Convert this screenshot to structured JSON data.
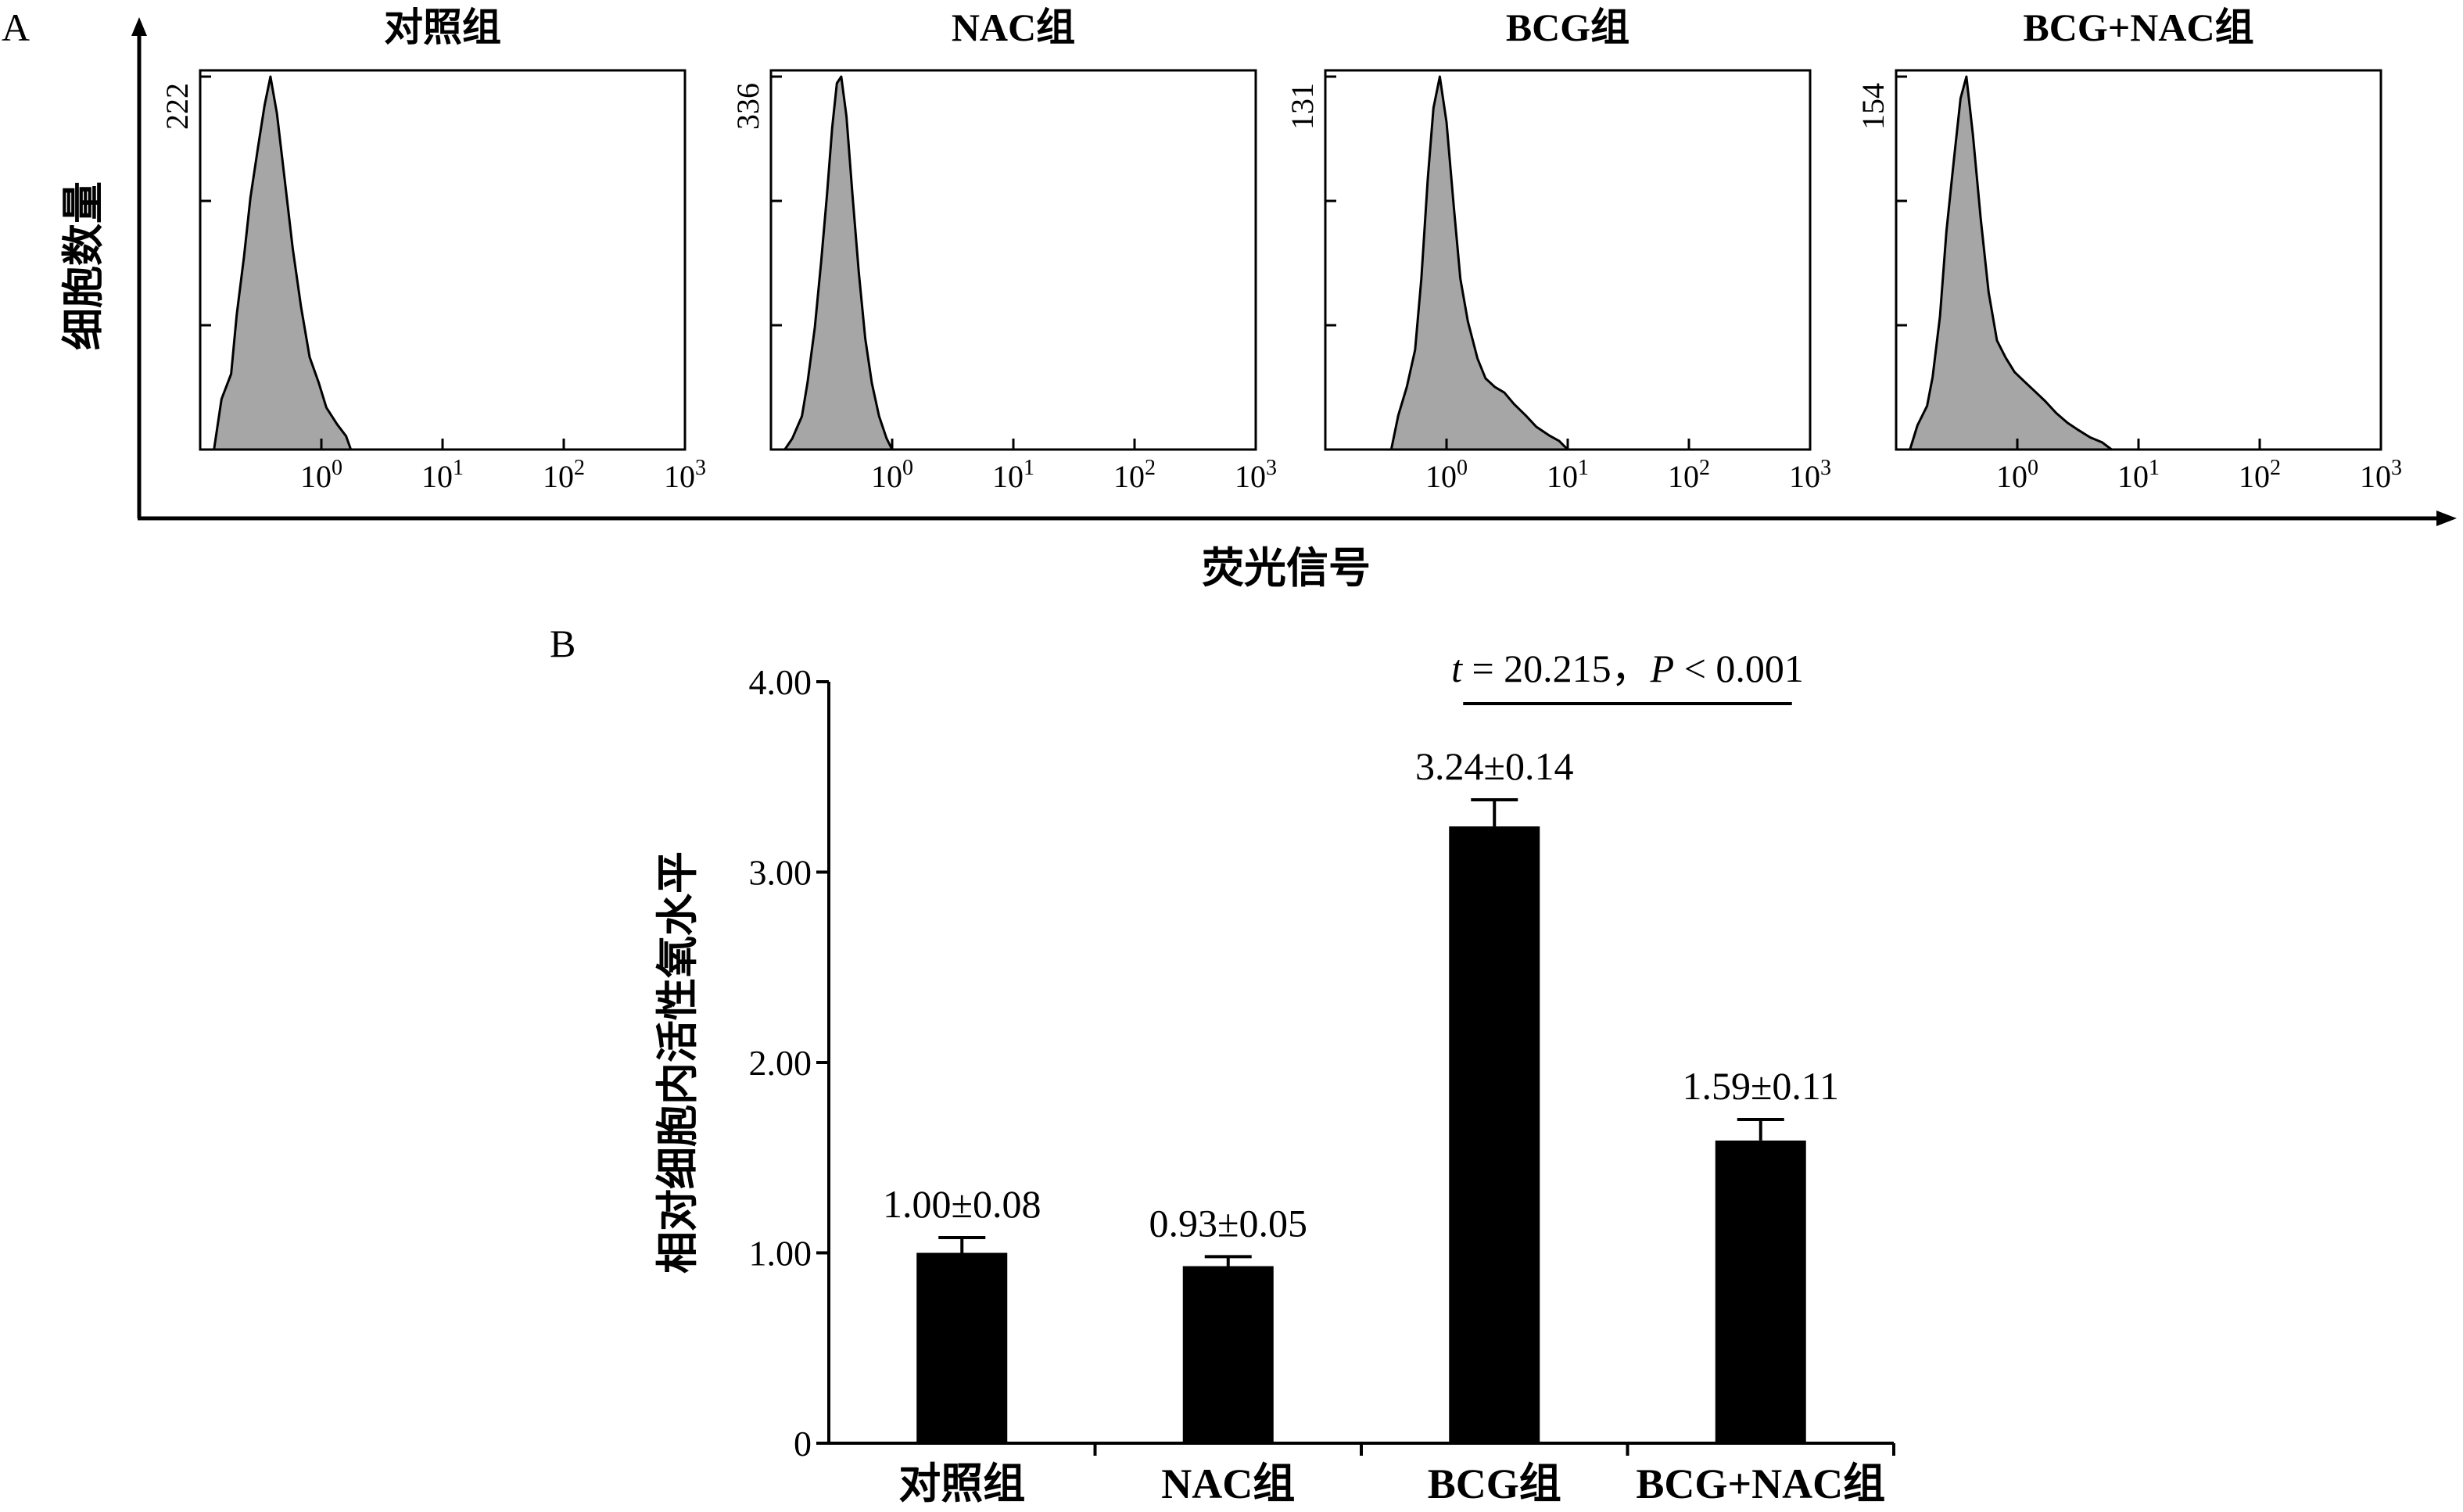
{
  "panel_labels": {
    "a": "A",
    "b": "B"
  },
  "panel_a": {
    "ylabel": "细胞数量",
    "xlabel": "荧光信号",
    "x_tick_base": "10",
    "x_tick_exponents": [
      "0",
      "1",
      "2",
      "3"
    ]
  },
  "panel_b": {
    "annotation": {
      "t_symbol": "t",
      "t_rest": " = 20.215，",
      "p_symbol": "P",
      "p_rest": " < 0.001"
    }
  },
  "colors": {
    "histogram_fill": "#a6a6a6",
    "bar_fill": "#000000",
    "axis": "#000000"
  },
  "chart_data": [
    {
      "type": "area",
      "panel": "A",
      "subtype": "flow-cytometry-histogram",
      "x_scale": "log",
      "xlim": [
        0.1,
        1000
      ],
      "histograms": [
        {
          "title": "对照组",
          "ymax_label": "222",
          "x": [
            0.13,
            0.15,
            0.18,
            0.2,
            0.23,
            0.26,
            0.3,
            0.34,
            0.38,
            0.43,
            0.5,
            0.58,
            0.68,
            0.8,
            0.95,
            1.1,
            1.35,
            1.6,
            1.75
          ],
          "y": [
            0,
            30,
            45,
            80,
            115,
            150,
            180,
            205,
            222,
            200,
            160,
            120,
            85,
            55,
            40,
            25,
            15,
            8,
            0
          ]
        },
        {
          "title": "NAC组",
          "ymax_label": "336",
          "x": [
            0.13,
            0.15,
            0.18,
            0.2,
            0.23,
            0.26,
            0.29,
            0.32,
            0.35,
            0.38,
            0.42,
            0.47,
            0.53,
            0.6,
            0.68,
            0.78,
            0.9,
            1.0
          ],
          "y": [
            0,
            10,
            30,
            60,
            110,
            170,
            230,
            290,
            330,
            336,
            300,
            230,
            160,
            100,
            60,
            30,
            10,
            0
          ]
        },
        {
          "title": "BCG组",
          "ymax_label": "131",
          "x": [
            0.35,
            0.4,
            0.47,
            0.55,
            0.62,
            0.7,
            0.78,
            0.88,
            1.0,
            1.15,
            1.3,
            1.5,
            1.8,
            2.1,
            2.5,
            3.0,
            3.6,
            4.5,
            5.5,
            7.0,
            8.5,
            10.0
          ],
          "y": [
            0,
            12,
            22,
            35,
            60,
            95,
            120,
            131,
            115,
            85,
            60,
            45,
            32,
            25,
            22,
            20,
            16,
            12,
            8,
            5,
            3,
            0
          ]
        },
        {
          "title": "BCG+NAC组",
          "ymax_label": "154",
          "x": [
            0.13,
            0.15,
            0.18,
            0.2,
            0.23,
            0.26,
            0.3,
            0.34,
            0.38,
            0.43,
            0.5,
            0.58,
            0.68,
            0.8,
            0.95,
            1.15,
            1.4,
            1.7,
            2.1,
            2.6,
            3.2,
            4.0,
            5.0,
            6.0
          ],
          "y": [
            0,
            10,
            18,
            30,
            55,
            90,
            120,
            145,
            154,
            130,
            95,
            65,
            45,
            38,
            32,
            28,
            24,
            20,
            15,
            11,
            8,
            5,
            3,
            0
          ]
        }
      ]
    },
    {
      "type": "bar",
      "panel": "B",
      "categories": [
        "对照组",
        "NAC组",
        "BCG组",
        "BCG+NAC组"
      ],
      "values": [
        1.0,
        0.93,
        3.24,
        1.59
      ],
      "errors": [
        0.08,
        0.05,
        0.14,
        0.11
      ],
      "value_labels": [
        "1.00±0.08",
        "0.93±0.05",
        "3.24±0.14",
        "1.59±0.11"
      ],
      "ylabel": "相对细胞内活性氧水平",
      "ylim": [
        0,
        4
      ],
      "yticks": [
        0,
        1,
        2,
        3,
        4
      ],
      "ytick_labels": [
        "0",
        "1.00",
        "2.00",
        "3.00",
        "4.00"
      ],
      "comparison": {
        "between": [
          "BCG组",
          "BCG+NAC组"
        ],
        "t": 20.215,
        "p": "< 0.001"
      }
    }
  ]
}
